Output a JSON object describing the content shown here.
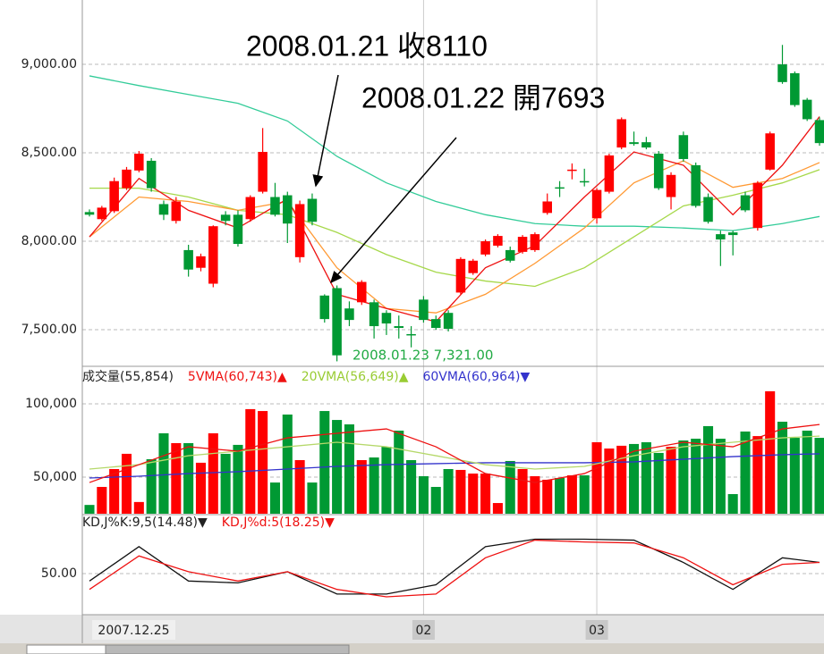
{
  "chart_data": [
    {
      "type": "candlestick",
      "categories": [
        "2007.12.25",
        null,
        null,
        null,
        null,
        null,
        null,
        null,
        null,
        null,
        null,
        null,
        null,
        null,
        null,
        null,
        null,
        null,
        null,
        null,
        null,
        null,
        null,
        null,
        null,
        null,
        null,
        "02",
        null,
        null,
        null,
        null,
        null,
        null,
        null,
        null,
        null,
        null,
        null,
        null,
        null,
        "03",
        null,
        null,
        null,
        null,
        null,
        null,
        null,
        null,
        null,
        null,
        null,
        null,
        null,
        null,
        null,
        null,
        null,
        null
      ],
      "open": [
        8165,
        8125,
        8170,
        8300,
        8400,
        8455,
        8210,
        8115,
        7950,
        7850,
        7760,
        8150,
        8150,
        8125,
        8280,
        8250,
        8260,
        7910,
        8240,
        7693,
        7735,
        7620,
        7655,
        7655,
        7595,
        7520,
        7475,
        7670,
        7560,
        7595,
        7710,
        7820,
        7925,
        7975,
        7950,
        7940,
        7950,
        8160,
        8305,
        8400,
        8340,
        8130,
        8280,
        8530,
        8560,
        8560,
        8495,
        8250,
        8600,
        8430,
        8250,
        8040,
        8050,
        8260,
        8075,
        8405,
        9000,
        8950,
        8800,
        8685
      ],
      "high": [
        8180,
        8200,
        8360,
        8420,
        8510,
        8470,
        8230,
        8250,
        7980,
        7930,
        8090,
        8170,
        8175,
        8260,
        8640,
        8330,
        8280,
        8230,
        8270,
        7700,
        7750,
        7660,
        7780,
        7670,
        7610,
        7580,
        7520,
        7690,
        7580,
        7610,
        7910,
        7900,
        8010,
        8040,
        7970,
        8035,
        8050,
        8270,
        8340,
        8440,
        8410,
        8300,
        8495,
        8700,
        8620,
        8590,
        8510,
        8390,
        8620,
        8445,
        8270,
        8060,
        8060,
        8280,
        8340,
        8620,
        9110,
        8960,
        8810,
        8700
      ],
      "low": [
        8140,
        8115,
        8160,
        8290,
        8390,
        8280,
        8120,
        8100,
        7800,
        7830,
        7740,
        8090,
        7970,
        8110,
        8270,
        8140,
        7990,
        7880,
        8090,
        7540,
        7321,
        7520,
        7640,
        7450,
        7470,
        7450,
        7400,
        7540,
        7500,
        7490,
        7700,
        7810,
        7915,
        7965,
        7880,
        7930,
        7940,
        8150,
        8250,
        8350,
        8310,
        8100,
        8270,
        8520,
        8540,
        8520,
        8290,
        8180,
        8450,
        8190,
        8100,
        7860,
        7920,
        8165,
        8060,
        8400,
        8890,
        8760,
        8680,
        8540
      ],
      "close": [
        8150,
        8190,
        8340,
        8405,
        8495,
        8300,
        8150,
        8225,
        7840,
        7915,
        8085,
        8115,
        7985,
        8250,
        8505,
        8150,
        8100,
        8210,
        8110,
        7560,
        7355,
        7555,
        7770,
        7520,
        7535,
        7510,
        7470,
        7555,
        7510,
        7505,
        7900,
        7890,
        8000,
        8030,
        7890,
        8025,
        8040,
        8225,
        8300,
        8405,
        8335,
        8290,
        8485,
        8690,
        8550,
        8530,
        8300,
        8375,
        8465,
        8200,
        8110,
        8010,
        8035,
        8175,
        8330,
        8610,
        8900,
        8770,
        8690,
        8555
      ],
      "up_color": "#ff0000",
      "down_color": "#009933",
      "ylim": [
        7303,
        9364
      ],
      "yticks": [
        {
          "value": 7500,
          "label": "7,500.00"
        },
        {
          "value": 8000,
          "label": "8,000.00"
        },
        {
          "value": 8500,
          "label": "8,500.00"
        },
        {
          "value": 9000,
          "label": "9,000.00"
        }
      ],
      "grid": true,
      "lines": [
        {
          "color": "#33cc99",
          "x": [
            0,
            4,
            8,
            12,
            16,
            20,
            24,
            28,
            32,
            36,
            40,
            44,
            48,
            52,
            56,
            59
          ],
          "values": [
            8935,
            8880,
            8830,
            8780,
            8680,
            8480,
            8330,
            8225,
            8150,
            8100,
            8085,
            8085,
            8075,
            8060,
            8100,
            8140
          ]
        },
        {
          "color": "#a6d84a",
          "x": [
            0,
            4,
            8,
            12,
            16,
            20,
            24,
            28,
            32,
            36,
            40,
            44,
            48,
            52,
            56,
            59
          ],
          "values": [
            8300,
            8300,
            8250,
            8175,
            8150,
            8050,
            7925,
            7825,
            7775,
            7745,
            7850,
            8025,
            8200,
            8260,
            8330,
            8405
          ]
        },
        {
          "color": "#ff9933",
          "x": [
            0,
            4,
            8,
            12,
            16,
            20,
            24,
            28,
            32,
            36,
            40,
            44,
            48,
            52,
            56,
            59
          ],
          "values": [
            8025,
            8250,
            8225,
            8175,
            8225,
            7850,
            7620,
            7595,
            7700,
            7875,
            8075,
            8330,
            8455,
            8305,
            8355,
            8445
          ]
        },
        {
          "color": "#ee1111",
          "x": [
            0,
            4,
            8,
            12,
            16,
            20,
            24,
            28,
            32,
            36,
            40,
            44,
            48,
            52,
            56,
            59
          ],
          "values": [
            8025,
            8355,
            8175,
            8075,
            8240,
            7700,
            7620,
            7545,
            7850,
            7975,
            8250,
            8505,
            8430,
            8150,
            8430,
            8705
          ]
        }
      ],
      "annotations": [
        {
          "text": "2008.01.21 收8110"
        },
        {
          "text": "2008.01.22 開7693"
        },
        {
          "text": "2008.01.23  7,321.00"
        }
      ]
    },
    {
      "type": "bar",
      "legend": [
        {
          "text": "成交量(55,854)",
          "color": "#222222"
        },
        {
          "text": "5VMA(60,743)▲",
          "color": "#ee1111"
        },
        {
          "text": "20VMA(56,649)▲",
          "color": "#99cc33"
        },
        {
          "text": "60VMA(60,964)▼",
          "color": "#3333cc"
        }
      ],
      "values": [
        31000,
        43300,
        55500,
        65900,
        33000,
        62200,
        79900,
        73200,
        73200,
        59800,
        79900,
        65900,
        72000,
        96400,
        95100,
        46300,
        92700,
        61600,
        46300,
        95100,
        89000,
        86000,
        61600,
        63400,
        70700,
        81700,
        61600,
        50600,
        43300,
        55500,
        54900,
        52400,
        52400,
        32300,
        61000,
        55500,
        50600,
        48200,
        49400,
        51200,
        51200,
        73800,
        69500,
        71400,
        72600,
        73800,
        66500,
        70700,
        75000,
        76200,
        84800,
        76200,
        38400,
        81100,
        78000,
        108600,
        87800,
        76800,
        81700,
        76800
      ],
      "ylim": [
        25000,
        124400
      ],
      "yticks": [
        {
          "value": 50000,
          "label": "50,000"
        },
        {
          "value": 100000,
          "label": "100,000"
        }
      ],
      "lines": [
        {
          "color": "#3333cc",
          "x": [
            0,
            4,
            8,
            12,
            16,
            20,
            24,
            28,
            32,
            36,
            40,
            44,
            48,
            52,
            56,
            59
          ],
          "values": [
            49400,
            50600,
            52400,
            53700,
            55500,
            57300,
            58500,
            59200,
            59800,
            59800,
            59800,
            60400,
            62200,
            64000,
            65300,
            65900
          ]
        },
        {
          "color": "#b5d86a",
          "x": [
            0,
            4,
            8,
            12,
            16,
            20,
            24,
            28,
            32,
            36,
            40,
            44,
            48,
            52,
            56,
            59
          ],
          "values": [
            55500,
            58500,
            64600,
            67700,
            70700,
            73800,
            70700,
            64600,
            58500,
            55500,
            57300,
            64600,
            70700,
            73800,
            76800,
            78000
          ]
        },
        {
          "color": "#ee1111",
          "x": [
            0,
            4,
            8,
            12,
            16,
            20,
            24,
            28,
            32,
            36,
            40,
            44,
            48,
            52,
            56,
            59
          ],
          "values": [
            46300,
            58500,
            70700,
            67700,
            76800,
            79900,
            82900,
            70700,
            52400,
            46300,
            52400,
            67700,
            73800,
            70700,
            82900,
            85900
          ]
        }
      ]
    },
    {
      "type": "line",
      "legend": [
        {
          "text": "KD,J%K:9,5(14.48)▼",
          "color": "#222222"
        },
        {
          "text": "KD,J%d:5(18.25)▼",
          "color": "#ee1111"
        }
      ],
      "series": [
        {
          "color": "#111111",
          "x": [
            0,
            4,
            8,
            12,
            16,
            20,
            24,
            28,
            32,
            36,
            40,
            44,
            48,
            52,
            56,
            59
          ],
          "values": [
            42,
            79,
            42,
            40,
            52,
            28,
            28,
            38,
            79,
            87,
            87,
            86,
            62,
            33,
            67,
            62
          ]
        },
        {
          "color": "#ee1111",
          "x": [
            0,
            4,
            8,
            12,
            16,
            20,
            24,
            28,
            32,
            36,
            40,
            44,
            48,
            52,
            56,
            59
          ],
          "values": [
            33,
            69,
            52,
            42,
            52,
            33,
            25,
            28,
            67,
            86,
            84,
            83,
            67,
            38,
            60,
            62
          ]
        }
      ],
      "ylim": [
        0,
        100
      ],
      "yticks": [
        {
          "value": 50,
          "label": "50.00"
        }
      ]
    }
  ]
}
